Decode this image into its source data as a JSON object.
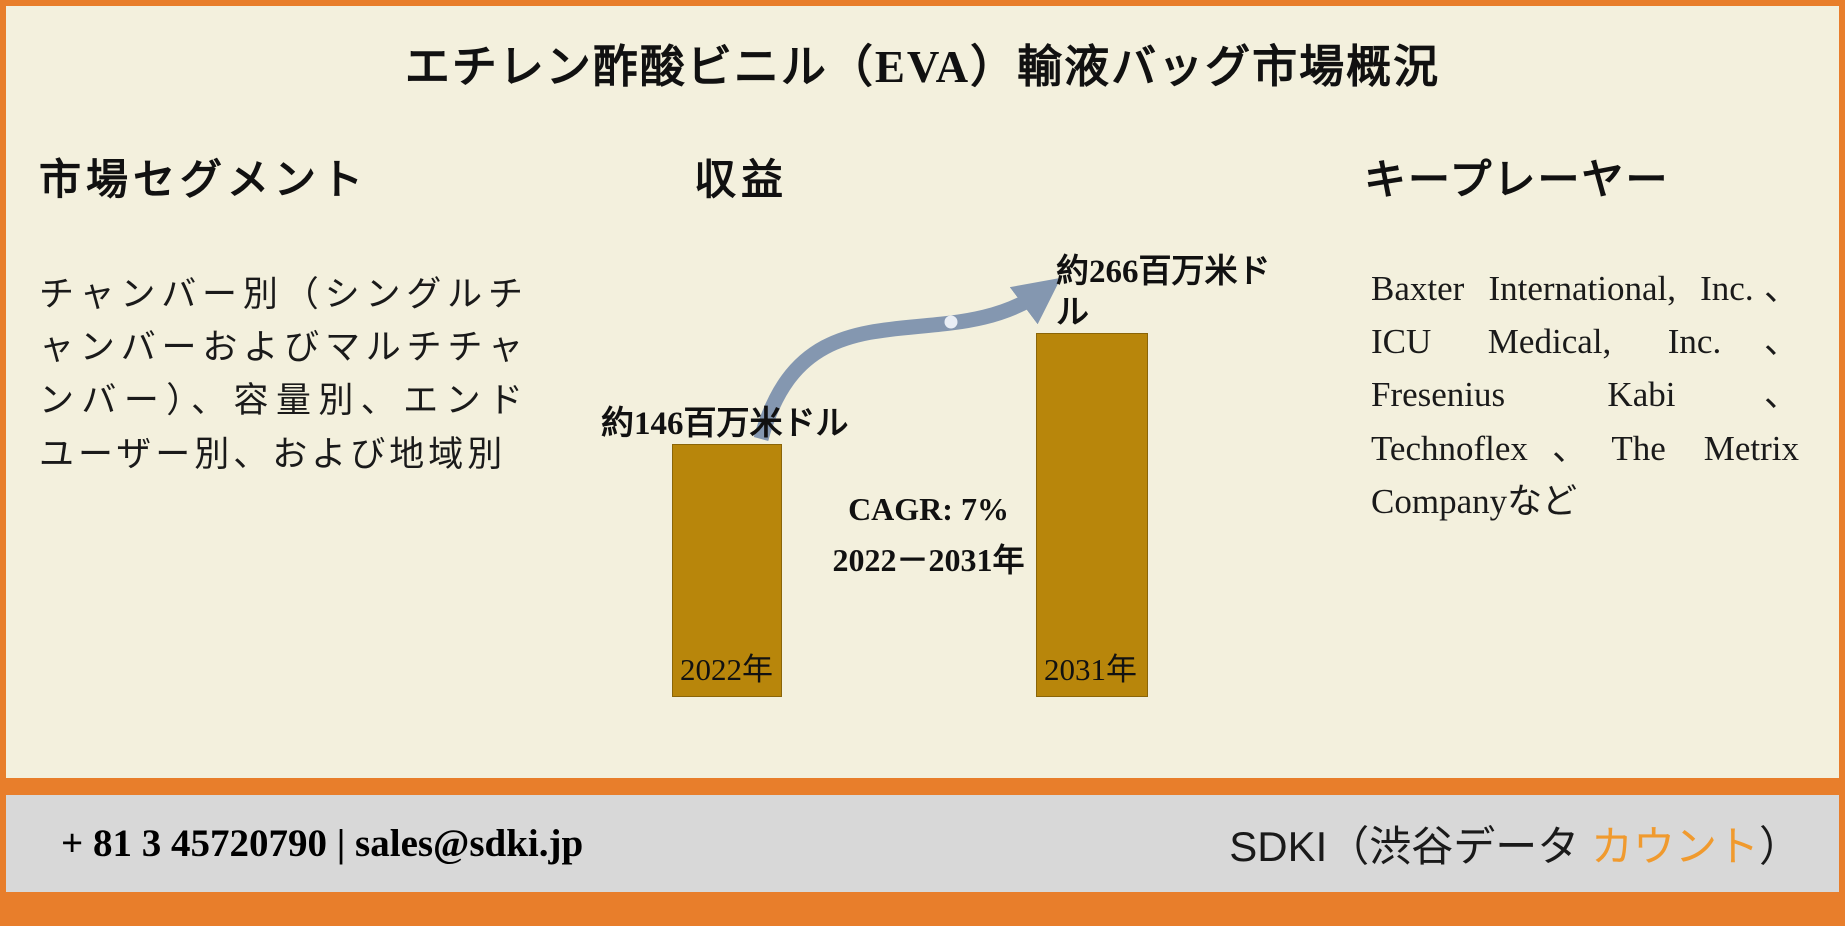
{
  "title": "エチレン酢酸ビニル（EVA）輸液バッグ市場概況",
  "segments": {
    "heading": "市場セグメント",
    "body": "チャンバー別（シングルチャンバーおよびマルチチャンバー）、容量別、エンドユーザー別、および地域別"
  },
  "players": {
    "heading": "キープレーヤー",
    "body": "Baxter International, Inc.、ICU Medical, Inc.、Fresenius Kabi、Technoflex、The Metrix Companyなど"
  },
  "chart_data": {
    "type": "bar",
    "title": "収益",
    "categories": [
      "2022年",
      "2031年"
    ],
    "values": [
      146,
      266
    ],
    "unit": "百万米ドル",
    "value_labels": [
      "約146百万米ドル",
      "約266百万米ドル"
    ],
    "cagr_label": "CAGR: 7%",
    "period_label": "2022－2031年",
    "ylim": [
      0,
      300
    ],
    "grid": false,
    "legend": false,
    "bar_color": "#B8860B"
  },
  "footer": {
    "contact": "+ 81 3 45720790 | sales@sdki.jp",
    "brand_prefix": "SDKI（渋谷データ ",
    "brand_highlight": "カウント",
    "brand_suffix": "）"
  },
  "colors": {
    "accent_orange": "#E87E2B",
    "bar_gold": "#B8860B",
    "arrow_blue": "#8497B0",
    "background_cream": "#F3F0DD",
    "footer_gray": "#D8D8D8",
    "brand_highlight_orange": "#F09A2E"
  }
}
